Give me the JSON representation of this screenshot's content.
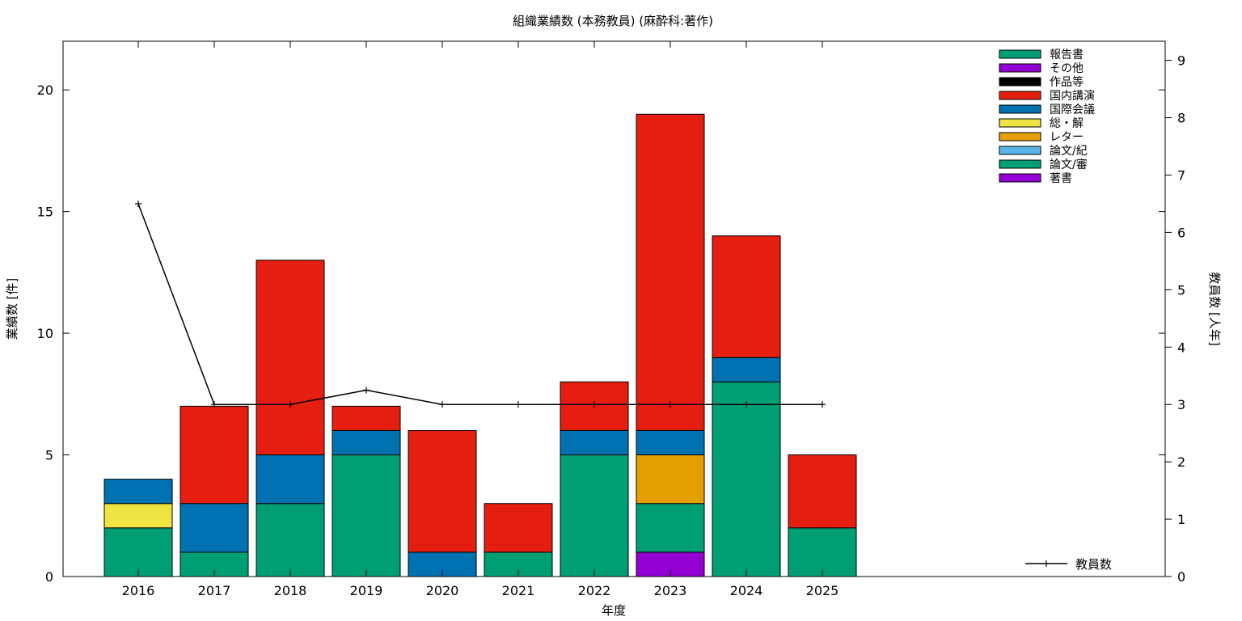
{
  "chart_data": {
    "type": "bar",
    "stacked": true,
    "title": "組織業績数 (本務教員) (麻酔科:著作)",
    "xlabel": "年度",
    "ylabel": "業績数 [件]",
    "y2label": "教員数 [人年]",
    "ylim": [
      0,
      22
    ],
    "y2lim": [
      0,
      9.333
    ],
    "yticks": [
      0,
      5,
      10,
      15,
      20
    ],
    "y2ticks": [
      0,
      1,
      2,
      3,
      4,
      5,
      6,
      7,
      8,
      9
    ],
    "categories": [
      "2016",
      "2017",
      "2018",
      "2019",
      "2020",
      "2021",
      "2022",
      "2023",
      "2024",
      "2025"
    ],
    "series": [
      {
        "name": "著書",
        "color": "#9400d3",
        "values": [
          0,
          0,
          0,
          0,
          0,
          0,
          0,
          1,
          0,
          0
        ]
      },
      {
        "name": "論文/審",
        "color": "#009e73",
        "values": [
          2,
          1,
          3,
          5,
          0,
          1,
          5,
          2,
          8,
          2
        ]
      },
      {
        "name": "論文/紀",
        "color": "#56b4e9",
        "values": [
          0,
          0,
          0,
          0,
          0,
          0,
          0,
          0,
          0,
          0
        ]
      },
      {
        "name": "レター",
        "color": "#e69f00",
        "values": [
          0,
          0,
          0,
          0,
          0,
          0,
          0,
          2,
          0,
          0
        ]
      },
      {
        "name": "総・解",
        "color": "#f0e442",
        "values": [
          1,
          0,
          0,
          0,
          0,
          0,
          0,
          0,
          0,
          0
        ]
      },
      {
        "name": "国際会議",
        "color": "#0072b2",
        "values": [
          1,
          2,
          2,
          1,
          1,
          0,
          1,
          1,
          1,
          0
        ]
      },
      {
        "name": "国内講演",
        "color": "#e51e10",
        "values": [
          0,
          4,
          8,
          1,
          5,
          2,
          2,
          13,
          5,
          3
        ]
      },
      {
        "name": "作品等",
        "color": "#000000",
        "values": [
          0,
          0,
          0,
          0,
          0,
          0,
          0,
          0,
          0,
          0
        ]
      },
      {
        "name": "その他",
        "color": "#9400d3",
        "values": [
          0,
          0,
          0,
          0,
          0,
          0,
          0,
          0,
          0,
          0
        ]
      },
      {
        "name": "報告書",
        "color": "#009e73",
        "values": [
          0,
          0,
          0,
          0,
          0,
          0,
          0,
          0,
          0,
          0
        ]
      }
    ],
    "legend_order": [
      "報告書",
      "その他",
      "作品等",
      "国内講演",
      "国際会議",
      "総・解",
      "レター",
      "論文/紀",
      "論文/審",
      "著書"
    ],
    "legend_position": "top-right",
    "line": {
      "name": "教員数",
      "axis": "y2",
      "color": "#000000",
      "values": [
        6.5,
        3,
        3,
        3.25,
        3,
        3,
        3,
        3,
        3,
        3
      ]
    },
    "grid": false
  }
}
